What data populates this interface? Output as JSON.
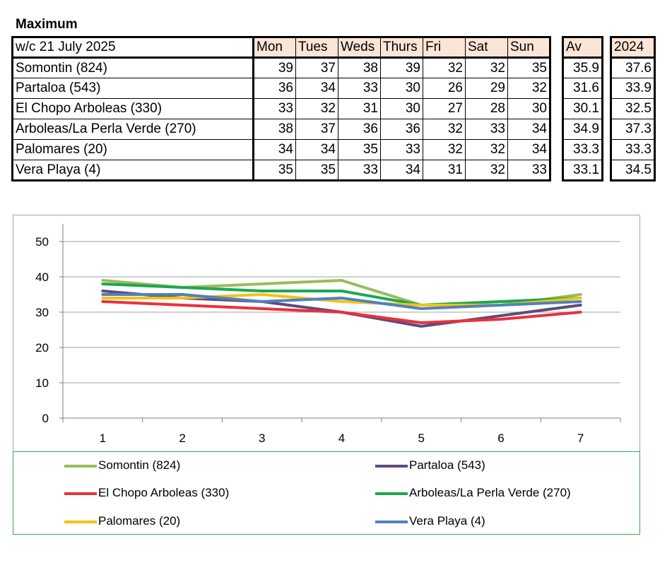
{
  "heading": "Maximum",
  "table": {
    "week_label": "w/c 21 July 2025",
    "days": [
      "Mon",
      "Tues",
      "Weds",
      "Thurs",
      "Fri",
      "Sat",
      "Sun"
    ],
    "avg_header": "Av",
    "prev_header": "2024",
    "rows": [
      {
        "site": "Somontin (824)",
        "values": [
          39,
          37,
          38,
          39,
          32,
          32,
          35
        ],
        "av": "35.9",
        "prev": "37.6"
      },
      {
        "site": "Partaloa (543)",
        "values": [
          36,
          34,
          33,
          30,
          26,
          29,
          32
        ],
        "av": "31.6",
        "prev": "33.9"
      },
      {
        "site": "El Chopo  Arboleas (330)",
        "values": [
          33,
          32,
          31,
          30,
          27,
          28,
          30
        ],
        "av": "30.1",
        "prev": "32.5"
      },
      {
        "site": "Arboleas/La Perla Verde (270)",
        "values": [
          38,
          37,
          36,
          36,
          32,
          33,
          34
        ],
        "av": "34.9",
        "prev": "37.3"
      },
      {
        "site": "Palomares (20)",
        "values": [
          34,
          34,
          35,
          33,
          32,
          32,
          34
        ],
        "av": "33.3",
        "prev": "33.3"
      },
      {
        "site": "Vera Playa (4)",
        "values": [
          35,
          35,
          33,
          34,
          31,
          32,
          33
        ],
        "av": "33.1",
        "prev": "34.5"
      }
    ]
  },
  "chart_data": {
    "type": "line",
    "x": [
      1,
      2,
      3,
      4,
      5,
      6,
      7
    ],
    "xticks": [
      "1",
      "2",
      "3",
      "4",
      "5",
      "6",
      "7"
    ],
    "ylim": [
      0,
      50
    ],
    "yticks": [
      "0",
      "10",
      "20",
      "30",
      "40",
      "50"
    ],
    "grid": true,
    "legend_position": "bottom",
    "series": [
      {
        "name": "Somontin (824)",
        "color": "#9bbb59",
        "values": [
          39,
          37,
          38,
          39,
          32,
          32,
          35
        ]
      },
      {
        "name": "Partaloa (543)",
        "color": "#604a7b",
        "values": [
          36,
          34,
          33,
          30,
          26,
          29,
          32
        ]
      },
      {
        "name": "El Chopo  Arboleas (330)",
        "color": "#e8313a",
        "values": [
          33,
          32,
          31,
          30,
          27,
          28,
          30
        ]
      },
      {
        "name": "Arboleas/La Perla Verde (270)",
        "color": "#1ba84e",
        "values": [
          38,
          37,
          36,
          36,
          32,
          33,
          34
        ]
      },
      {
        "name": "Palomares (20)",
        "color": "#f2c314",
        "values": [
          34,
          34,
          35,
          33,
          32,
          32,
          34
        ]
      },
      {
        "name": "Vera Playa (4)",
        "color": "#4f81bd",
        "values": [
          35,
          35,
          33,
          34,
          31,
          32,
          33
        ]
      }
    ]
  }
}
